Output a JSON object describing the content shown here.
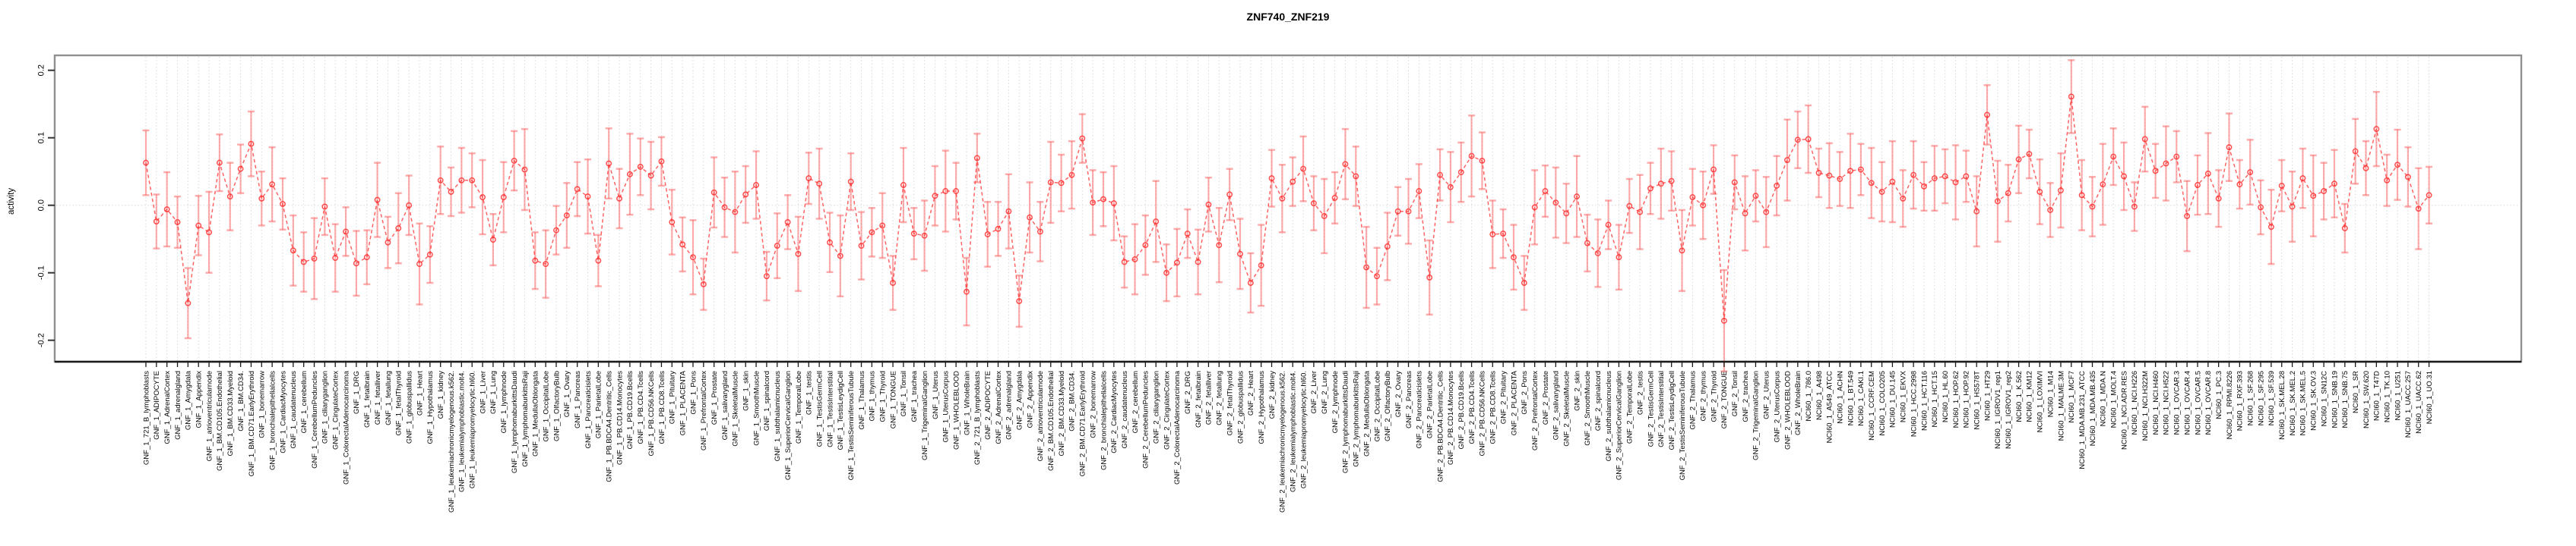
{
  "title": "ZNF740_ZNF219",
  "chart_data": {
    "type": "line",
    "title": "ZNF740_ZNF219",
    "xlabel": "",
    "ylabel": "activity",
    "ylim": [
      -0.232,
      0.222
    ],
    "yticks": [
      "0.2",
      "0.1",
      "0.0",
      "-0.1",
      "-0.2"
    ],
    "ytick_values": [
      0.2,
      0.1,
      0.0,
      -0.1,
      -0.2
    ],
    "grid": "vertical dotted line at every category; dotted horizontal line at zero",
    "legend": "none",
    "style": "open-circle points with error bars, connected by dashed line",
    "colors": {
      "error_bar": "rgba(252,92,92,0.50)",
      "series_line": "rgba(255,48,48,0.75)",
      "marker": "rgba(255,48,48,0.85)",
      "grid_line": "#d8d8d8",
      "frame": "#909090",
      "x_axis": "#1a1a1a",
      "tick": "#333333",
      "text": "#000000"
    },
    "categories": [
      "GNF_1_721_B_lymphoblasts",
      "GNF_1_ADIPOCYTE",
      "GNF_1_AdrenalCortex",
      "GNF_1_adrenalgland",
      "GNF_1_Amygdala",
      "GNF_1_Appendix",
      "GNF_1_atrioventricularnode",
      "GNF_1_BM.CD105.Endothelial",
      "GNF_1_BM.CD33.Myeloid",
      "GNF_1_BM.CD34.",
      "GNF_1_BM.CD71.EarlyErythroid",
      "GNF_1_bonemarrow",
      "GNF_1_bronchialepithelialcells",
      "GNF_1_CardiacMyocytes",
      "GNF_1_caudatenucleus",
      "GNF_1_cerebellum",
      "GNF_1_CerebellumPeduncles",
      "GNF_1_ciliaryganglion",
      "GNF_1_CingulateCortex",
      "GNF_1_ColorectalAdenocarcinoma",
      "GNF_1_DRG",
      "GNF_1_fetalbrain",
      "GNF_1_fetalliver",
      "GNF_1_fetallung",
      "GNF_1_fetalThyroid",
      "GNF_1_globuspallidus",
      "GNF_1_Heart",
      "GNF_1_Hypothalamus",
      "GNF_1_kidney",
      "GNF_1_leukemiachronicmyelogenous.k562.",
      "GNF_1_leukemialymphoblastic.molt4.",
      "GNF_1_leukemiapromyelocytic.hl60.",
      "GNF_1_Liver",
      "GNF_1_Lung",
      "GNF_1_lymphnode",
      "GNF_1_lymphomaburkittsDaudi",
      "GNF_1_lymphomaburkittsRaji",
      "GNF_1_MedullaOblongata",
      "GNF_1_OccipitalLobe",
      "GNF_1_OlfactoryBulb",
      "GNF_1_Ovary",
      "GNF_1_Pancreas",
      "GNF_1_Pancreaticislets",
      "GNF_1_ParietalLobe",
      "GNF_1_PB.BDCA4.Dentritic_Cells",
      "GNF_1_PB.CD14.Monocytes",
      "GNF_1_PB.CD19.Bcells",
      "GNF_1_PB.CD4.Tcells",
      "GNF_1_PB.CD56.NKCells",
      "GNF_1_PB.CD8.Tcells",
      "GNF_1_Pituitary",
      "GNF_1_PLACENTA",
      "GNF_1_Pons",
      "GNF_1_PrefrontalCortex",
      "GNF_1_Prostate",
      "GNF_1_salivarygland",
      "GNF_1_SkeletalMuscle",
      "GNF_1_skin",
      "GNF_1_SmoothMuscle",
      "GNF_1_spinalcord",
      "GNF_1_subthalamicnucleus",
      "GNF_1_SuperiorCervicalGanglion",
      "GNF_1_TemporalLobe",
      "GNF_1_testis",
      "GNF_1_TestisGermCell",
      "GNF_1_TestisInterstitial",
      "GNF_1_TestisLeydigCell",
      "GNF_1_TestisSeminiferousTubule",
      "GNF_1_Thalamus",
      "GNF_1_thymus",
      "GNF_1_Thyroid",
      "GNF_1_TONGUE",
      "GNF_1_Tonsil",
      "GNF_1_trachea",
      "GNF_1_TrigeminalGanglion",
      "GNF_1_Uterus",
      "GNF_1_UterusCorpus",
      "GNF_1_WHOLEBLOOD",
      "GNF_1_WholeBrain",
      "GNF_2_721_B_lymphoblasts",
      "GNF_2_ADIPOCYTE",
      "GNF_2_AdrenalCortex",
      "GNF_2_adrenalgland",
      "GNF_2_Amygdala",
      "GNF_2_Appendix",
      "GNF_2_atrioventricularnode",
      "GNF_2_BM.CD105.Endothelial",
      "GNF_2_BM.CD33.Myeloid",
      "GNF_2_BM.CD34.",
      "GNF_2_BM.CD71.EarlyErythroid",
      "GNF_2_bonemarrow",
      "GNF_2_bronchialepithelialcells",
      "GNF_2_CardiacMyocytes",
      "GNF_2_caudatenucleus",
      "GNF_2_cerebellum",
      "GNF_2_CerebellumPeduncles",
      "GNF_2_ciliaryganglion",
      "GNF_2_CingulateCortex",
      "GNF_2_ColorectalAdenocarcinoma",
      "GNF_2_DRG",
      "GNF_2_fetalbrain",
      "GNF_2_fetalliver",
      "GNF_2_fetallung",
      "GNF_2_fetalThyroid",
      "GNF_2_globuspallidus",
      "GNF_2_Heart",
      "GNF_2_Hypothalamus",
      "GNF_2_kidney",
      "GNF_2_leukemiachronicmyelogenous.k562.",
      "GNF_2_leukemialymphoblastic.molt4.",
      "GNF_2_leukemiapromyelocytic.hl60.",
      "GNF_2_Liver",
      "GNF_2_Lung",
      "GNF_2_lymphnode",
      "GNF_2_lymphomaburkittsDaudi",
      "GNF_2_lymphomaburkittsRaji",
      "GNF_2_MedullaOblongata",
      "GNF_2_OccipitalLobe",
      "GNF_2_OlfactoryBulb",
      "GNF_2_Ovary",
      "GNF_2_Pancreas",
      "GNF_2_Pancreaticislets",
      "GNF_2_ParietalLobe",
      "GNF_2_PB.BDCA4.Dentritic_Cells",
      "GNF_2_PB.CD14.Monocytes",
      "GNF_2_PB.CD19.Bcells",
      "GNF_2_PB.CD4.Tcells",
      "GNF_2_PB.CD56.NKCells",
      "GNF_2_PB.CD8.Tcells",
      "GNF_2_Pituitary",
      "GNF_2_PLACENTA",
      "GNF_2_Pons",
      "GNF_2_PrefrontalCortex",
      "GNF_2_Prostate",
      "GNF_2_salivarygland",
      "GNF_2_SkeletalMuscle",
      "GNF_2_skin",
      "GNF_2_SmoothMuscle",
      "GNF_2_spinalcord",
      "GNF_2_subthalamicnucleus",
      "GNF_2_SuperiorCervicalGanglion",
      "GNF_2_TemporalLobe",
      "GNF_2_testis",
      "GNF_2_TestisGermCell",
      "GNF_2_TestisInterstitial",
      "GNF_2_TestisLeydigCell",
      "GNF_2_TestisSeminiferousTubule",
      "GNF_2_Thalamus",
      "GNF_2_thymus",
      "GNF_2_Thyroid",
      "GNF_2_TONGUE",
      "GNF_2_Tonsil",
      "GNF_2_trachea",
      "GNF_2_TrigeminalGanglion",
      "GNF_2_Uterus",
      "GNF_2_UterusCorpus",
      "GNF_2_WHOLEBLOOD",
      "GNF_2_WholeBrain",
      "NCI60_1_786.0",
      "NCI60_1_A498",
      "NCI60_1_A549_ATCC",
      "NCI60_1_ACHN",
      "NCI60_1_BT.549",
      "NCI60_1_CAKI.1",
      "NCI60_1_CCRF.CEM",
      "NCI60_1_COLO205",
      "NCI60_1_DU.145",
      "NCI60_1_EKVX",
      "NCI60_1_HCC.2998",
      "NCI60_1_HCT.116",
      "NCI60_1_HCT.15",
      "NCI60_1_HL.60",
      "NCI60_1_HOP.62",
      "NCI60_1_HOP.92",
      "NCI60_1_HS578T",
      "NCI60_1_HT29",
      "NCI60_1_IGROV1_rep1",
      "NCI60_1_IGROV1_rep2",
      "NCI60_1_K.562",
      "NCI60_1_KM12",
      "NCI60_1_LOXIMVI",
      "NCI60_1_M14",
      "NCI60_1_MALME.3M",
      "NCI60_1_MCF7",
      "NCI60_1_MDA.MB.231_ATCC",
      "NCI60_1_MDA.MB.435",
      "NCI60_1_MDA.N",
      "NCI60_1_MOLT.4",
      "NCI60_1_NCI.ADR.RES",
      "NCI60_1_NCI.H226",
      "NCI60_1_NCI.H322M",
      "NCI60_1_NCI.H460",
      "NCI60_1_NCI.H522",
      "NCI60_1_OVCAR.3",
      "NCI60_1_OVCAR.4",
      "NCI60_1_OVCAR.5",
      "NCI60_1_OVCAR.8",
      "NCI60_1_PC.3",
      "NCI60_1_RPMI.8226",
      "NCI60_1_RXF.393",
      "NCI60_1_SF.268",
      "NCI60_1_SF.295",
      "NCI60_1_SF.539",
      "NCI60_1_SK.MEL.28",
      "NCI60_1_SK.MEL.2",
      "NCI60_1_SK.MEL.5",
      "NCI60_1_SK.OV.3",
      "NCI60_1_SN12C",
      "NCI60_1_SNB.19",
      "NCI60_1_SNB.75",
      "NCI60_1_SR",
      "NCI60_1_SW.620",
      "NCI60_1_T47D",
      "NCI60_1_TK.10",
      "NCI60_1_U251",
      "NCI60_1_UACC.257",
      "NCI60_1_UACC.62",
      "NCI60_1_UO.31"
    ],
    "values": [
      0.063,
      -0.024,
      -0.006,
      -0.025,
      -0.145,
      -0.03,
      -0.04,
      0.063,
      0.013,
      0.054,
      0.091,
      0.01,
      0.031,
      0.002,
      -0.067,
      -0.084,
      -0.079,
      -0.002,
      -0.078,
      -0.039,
      -0.086,
      -0.077,
      0.008,
      -0.055,
      -0.034,
      0.0,
      -0.087,
      -0.073,
      0.037,
      0.02,
      0.037,
      0.037,
      0.012,
      -0.051,
      0.012,
      0.066,
      0.053,
      -0.082,
      -0.087,
      -0.037,
      -0.015,
      0.024,
      0.013,
      -0.082,
      0.062,
      0.01,
      0.046,
      0.057,
      0.044,
      0.065,
      -0.025,
      -0.058,
      -0.077,
      -0.117,
      0.019,
      -0.003,
      -0.01,
      0.016,
      0.03,
      -0.105,
      -0.06,
      -0.025,
      -0.072,
      0.04,
      0.032,
      -0.055,
      -0.075,
      0.035,
      -0.06,
      -0.04,
      -0.03,
      -0.115,
      0.03,
      -0.042,
      -0.045,
      0.014,
      0.021,
      0.021,
      -0.128,
      0.07,
      -0.043,
      -0.035,
      -0.009,
      -0.142,
      -0.018,
      -0.039,
      0.034,
      0.033,
      0.045,
      0.099,
      0.004,
      0.009,
      0.003,
      -0.084,
      -0.08,
      -0.059,
      -0.024,
      -0.1,
      -0.085,
      -0.042,
      -0.084,
      0.001,
      -0.059,
      0.016,
      -0.072,
      -0.115,
      -0.089,
      0.04,
      0.01,
      0.035,
      0.054,
      0.003,
      -0.016,
      0.011,
      0.061,
      0.043,
      -0.092,
      -0.105,
      -0.061,
      -0.009,
      -0.009,
      0.021,
      -0.107,
      0.045,
      0.027,
      0.049,
      0.073,
      0.066,
      -0.043,
      -0.042,
      -0.077,
      -0.115,
      -0.003,
      0.021,
      0.004,
      -0.012,
      0.013,
      -0.056,
      -0.071,
      -0.029,
      -0.077,
      -0.001,
      -0.01,
      0.025,
      0.032,
      0.036,
      -0.067,
      0.012,
      0.0,
      0.053,
      -0.171,
      0.034,
      -0.012,
      0.014,
      -0.01,
      0.029,
      0.067,
      0.097,
      0.098,
      0.048,
      0.044,
      0.039,
      0.051,
      0.053,
      0.033,
      0.02,
      0.035,
      0.01,
      0.045,
      0.028,
      0.04,
      0.043,
      0.034,
      0.043,
      -0.009,
      0.134,
      0.006,
      0.018,
      0.068,
      0.076,
      0.02,
      -0.007,
      0.022,
      0.161,
      0.015,
      -0.002,
      0.031,
      0.072,
      0.043,
      -0.002,
      0.098,
      0.051,
      0.062,
      0.072,
      -0.016,
      0.03,
      0.047,
      0.01,
      0.086,
      0.031,
      0.049,
      -0.003,
      -0.032,
      0.029,
      -0.002,
      0.04,
      0.014,
      0.021,
      0.032,
      -0.034,
      0.08,
      0.055,
      0.113,
      0.037,
      0.06,
      0.042,
      -0.005,
      0.015
    ],
    "errors": [
      0.048,
      0.04,
      0.055,
      0.038,
      0.052,
      0.044,
      0.06,
      0.042,
      0.05,
      0.036,
      0.048,
      0.04,
      0.055,
      0.038,
      0.052,
      0.044,
      0.06,
      0.042,
      0.05,
      0.036,
      0.048,
      0.04,
      0.055,
      0.038,
      0.052,
      0.044,
      0.06,
      0.042,
      0.05,
      0.036,
      0.048,
      0.04,
      0.055,
      0.038,
      0.052,
      0.044,
      0.06,
      0.042,
      0.05,
      0.036,
      0.048,
      0.04,
      0.055,
      0.038,
      0.052,
      0.044,
      0.06,
      0.042,
      0.05,
      0.036,
      0.048,
      0.04,
      0.055,
      0.038,
      0.052,
      0.044,
      0.06,
      0.042,
      0.05,
      0.036,
      0.048,
      0.04,
      0.055,
      0.038,
      0.052,
      0.044,
      0.06,
      0.042,
      0.05,
      0.036,
      0.048,
      0.04,
      0.055,
      0.038,
      0.052,
      0.044,
      0.06,
      0.042,
      0.05,
      0.036,
      0.048,
      0.04,
      0.055,
      0.038,
      0.052,
      0.044,
      0.06,
      0.042,
      0.05,
      0.036,
      0.048,
      0.04,
      0.055,
      0.038,
      0.052,
      0.044,
      0.06,
      0.042,
      0.05,
      0.036,
      0.048,
      0.04,
      0.055,
      0.038,
      0.052,
      0.044,
      0.06,
      0.042,
      0.05,
      0.036,
      0.048,
      0.04,
      0.055,
      0.038,
      0.052,
      0.044,
      0.06,
      0.042,
      0.05,
      0.036,
      0.048,
      0.04,
      0.055,
      0.038,
      0.052,
      0.044,
      0.06,
      0.042,
      0.05,
      0.036,
      0.048,
      0.04,
      0.055,
      0.038,
      0.052,
      0.044,
      0.06,
      0.042,
      0.05,
      0.036,
      0.048,
      0.04,
      0.055,
      0.038,
      0.052,
      0.044,
      0.06,
      0.042,
      0.05,
      0.036,
      0.075,
      0.04,
      0.055,
      0.038,
      0.052,
      0.044,
      0.06,
      0.042,
      0.05,
      0.036,
      0.048,
      0.04,
      0.055,
      0.038,
      0.052,
      0.044,
      0.06,
      0.042,
      0.05,
      0.036,
      0.048,
      0.04,
      0.055,
      0.038,
      0.052,
      0.044,
      0.06,
      0.042,
      0.05,
      0.036,
      0.048,
      0.04,
      0.055,
      0.054,
      0.052,
      0.044,
      0.06,
      0.042,
      0.05,
      0.036,
      0.048,
      0.04,
      0.055,
      0.038,
      0.052,
      0.044,
      0.06,
      0.042,
      0.05,
      0.036,
      0.048,
      0.04,
      0.055,
      0.038,
      0.052,
      0.044,
      0.06,
      0.042,
      0.05,
      0.036,
      0.048,
      0.04,
      0.055,
      0.038,
      0.052,
      0.044,
      0.06,
      0.042
    ]
  }
}
